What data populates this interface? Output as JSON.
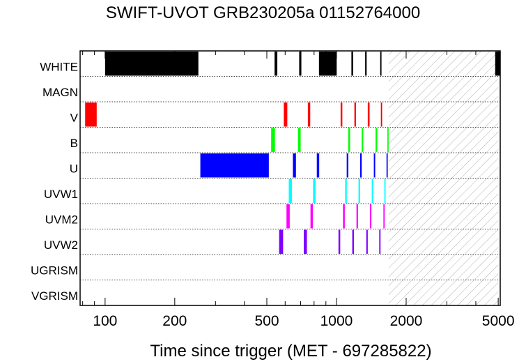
{
  "chart_data": {
    "type": "timeline",
    "title": "SWIFT-UVOT GRB230205a 01152764000",
    "xlabel": "Time since trigger (MET - 697285822)",
    "x_scale": "log",
    "xlim": [
      78,
      5100
    ],
    "x_ticks": [
      100,
      200,
      500,
      1000,
      2000,
      5000
    ],
    "x_tick_labels": [
      "100",
      "200",
      "500",
      "1000",
      "2000",
      "5000"
    ],
    "hatched_region": [
      1680,
      5000
    ],
    "rows": [
      {
        "label": "WHITE",
        "color": "#000000",
        "segments": [
          [
            100,
            253
          ],
          [
            540,
            555
          ],
          [
            690,
            705
          ],
          [
            840,
            1002
          ],
          [
            1160,
            1180
          ],
          [
            1330,
            1350
          ],
          [
            1545,
            1565
          ],
          [
            4850,
            5100
          ]
        ]
      },
      {
        "label": "MAGN",
        "color": "#000000",
        "segments": []
      },
      {
        "label": "V",
        "color": "#ff0000",
        "segments": [
          [
            82,
            92
          ],
          [
            592,
            613
          ],
          [
            752,
            770
          ],
          [
            1042,
            1060
          ],
          [
            1195,
            1215
          ],
          [
            1365,
            1390
          ],
          [
            1555,
            1575
          ]
        ]
      },
      {
        "label": "B",
        "color": "#00ff00",
        "segments": [
          [
            522,
            542
          ],
          [
            682,
            700
          ],
          [
            1125,
            1145
          ],
          [
            1285,
            1305
          ],
          [
            1475,
            1500
          ],
          [
            1660,
            1680
          ]
        ]
      },
      {
        "label": "U",
        "color": "#0000ff",
        "segments": [
          [
            258,
            510
          ],
          [
            648,
            668
          ],
          [
            822,
            842
          ],
          [
            1107,
            1125
          ],
          [
            1265,
            1285
          ],
          [
            1450,
            1470
          ],
          [
            1645,
            1665
          ]
        ]
      },
      {
        "label": "UVW1",
        "color": "#00ffff",
        "segments": [
          [
            622,
            642
          ],
          [
            792,
            812
          ],
          [
            1090,
            1108
          ],
          [
            1245,
            1265
          ],
          [
            1420,
            1440
          ],
          [
            1610,
            1630
          ]
        ]
      },
      {
        "label": "UVM2",
        "color": "#ff00ff",
        "segments": [
          [
            608,
            628
          ],
          [
            772,
            790
          ],
          [
            1067,
            1086
          ],
          [
            1220,
            1240
          ],
          [
            1395,
            1415
          ],
          [
            1595,
            1615
          ]
        ]
      },
      {
        "label": "UVW2",
        "color": "#8000ff",
        "segments": [
          [
            565,
            588
          ],
          [
            722,
            745
          ],
          [
            1020,
            1038
          ],
          [
            1170,
            1190
          ],
          [
            1345,
            1365
          ],
          [
            1530,
            1550
          ]
        ]
      },
      {
        "label": "UGRISM",
        "color": "#000000",
        "segments": []
      },
      {
        "label": "VGRISM",
        "color": "#000000",
        "segments": []
      }
    ]
  }
}
